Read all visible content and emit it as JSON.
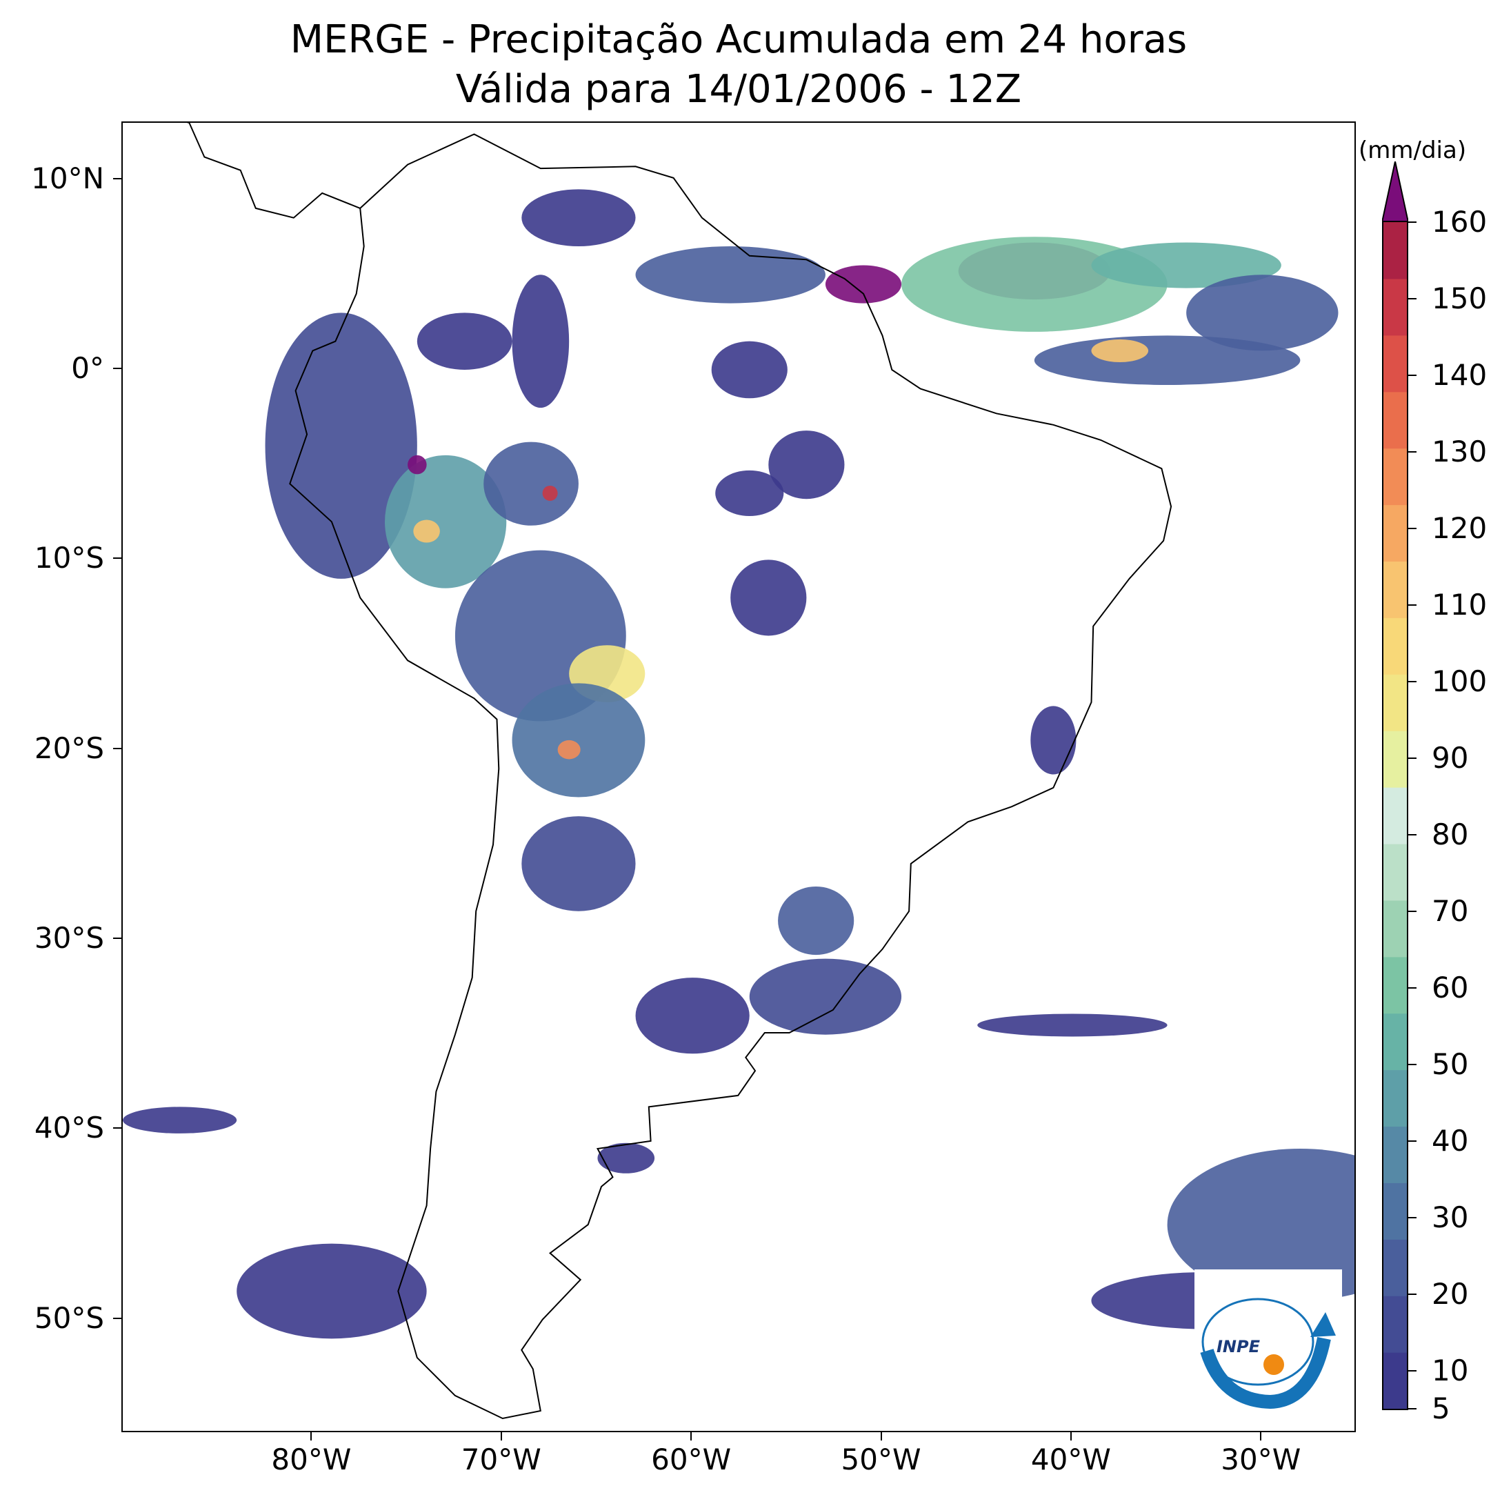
{
  "title": {
    "line1": "MERGE - Precipitação Acumulada em 24 horas",
    "line2": "Válida para 14/01/2006 - 12Z"
  },
  "map": {
    "projection": "PlateCarree",
    "extent_lon": [
      -90,
      -25
    ],
    "extent_lat": [
      -56,
      13
    ],
    "lat_ticks": [
      {
        "value": 10,
        "label": "10°N"
      },
      {
        "value": 0,
        "label": "0°"
      },
      {
        "value": -10,
        "label": "10°S"
      },
      {
        "value": -20,
        "label": "20°S"
      },
      {
        "value": -30,
        "label": "30°S"
      },
      {
        "value": -40,
        "label": "40°S"
      },
      {
        "value": -50,
        "label": "50°S"
      }
    ],
    "lon_ticks": [
      {
        "value": -80,
        "label": "80°W"
      },
      {
        "value": -70,
        "label": "70°W"
      },
      {
        "value": -60,
        "label": "60°W"
      },
      {
        "value": -50,
        "label": "50°W"
      },
      {
        "value": -40,
        "label": "40°W"
      },
      {
        "value": -30,
        "label": "30°W"
      }
    ]
  },
  "colorbar": {
    "unit": "(mm/dia)",
    "min": 5,
    "max": 160,
    "extend": "max",
    "ticks": [
      {
        "value": 5,
        "label": "5"
      },
      {
        "value": 10,
        "label": "10"
      },
      {
        "value": 20,
        "label": "20"
      },
      {
        "value": 30,
        "label": "30"
      },
      {
        "value": 40,
        "label": "40"
      },
      {
        "value": 50,
        "label": "50"
      },
      {
        "value": 60,
        "label": "60"
      },
      {
        "value": 70,
        "label": "70"
      },
      {
        "value": 80,
        "label": "80"
      },
      {
        "value": 90,
        "label": "90"
      },
      {
        "value": 100,
        "label": "100"
      },
      {
        "value": 110,
        "label": "110"
      },
      {
        "value": 120,
        "label": "120"
      },
      {
        "value": 130,
        "label": "130"
      },
      {
        "value": 140,
        "label": "140"
      },
      {
        "value": 150,
        "label": "150"
      },
      {
        "value": 160,
        "label": "160"
      }
    ],
    "colors": [
      "#3c3a8c",
      "#434c94",
      "#4a5f9c",
      "#4f73a2",
      "#5689a6",
      "#5e9fa8",
      "#67b3a6",
      "#7cc4a4",
      "#9dd2b3",
      "#bbe0c8",
      "#d4ebe0",
      "#e6f0a0",
      "#f2e585",
      "#f8d878",
      "#f8c470",
      "#f6a862",
      "#f28c56",
      "#ea6e4c",
      "#dd5148",
      "#c93846",
      "#ab2244"
    ],
    "over_color": "#7a0d7a"
  },
  "logo": {
    "text": "INPE",
    "orbit_color": "#1573b8",
    "dot_color": "#f08a12"
  },
  "precip_regions": [
    {
      "lon": -78.5,
      "lat": -4,
      "rx": 4,
      "ry": 7,
      "level": 15
    },
    {
      "lon": -73,
      "lat": -8,
      "rx": 3.2,
      "ry": 3.5,
      "level": 45
    },
    {
      "lon": -74.5,
      "lat": -5,
      "rx": 0.5,
      "ry": 0.5,
      "level": 160
    },
    {
      "lon": -74,
      "lat": -8.5,
      "rx": 0.7,
      "ry": 0.6,
      "level": 110
    },
    {
      "lon": -68.5,
      "lat": -6,
      "rx": 2.5,
      "ry": 2.2,
      "level": 25
    },
    {
      "lon": -67.5,
      "lat": -6.5,
      "rx": 0.4,
      "ry": 0.4,
      "level": 150
    },
    {
      "lon": -68,
      "lat": -14,
      "rx": 4.5,
      "ry": 4.5,
      "level": 20
    },
    {
      "lon": -64.5,
      "lat": -16,
      "rx": 2,
      "ry": 1.5,
      "level": 100
    },
    {
      "lon": -66,
      "lat": -19.5,
      "rx": 3.5,
      "ry": 3,
      "level": 30
    },
    {
      "lon": -66.5,
      "lat": -20,
      "rx": 0.6,
      "ry": 0.5,
      "level": 130
    },
    {
      "lon": -66,
      "lat": -26,
      "rx": 3,
      "ry": 2.5,
      "level": 15
    },
    {
      "lon": -68,
      "lat": 1.5,
      "rx": 1.5,
      "ry": 3.5,
      "level": 8
    },
    {
      "lon": -72,
      "lat": 1.5,
      "rx": 2.5,
      "ry": 1.5,
      "level": 8
    },
    {
      "lon": -57,
      "lat": 0,
      "rx": 2,
      "ry": 1.5,
      "level": 10
    },
    {
      "lon": -54,
      "lat": -5,
      "rx": 2,
      "ry": 1.8,
      "level": 12
    },
    {
      "lon": -57,
      "lat": -6.5,
      "rx": 1.8,
      "ry": 1.2,
      "level": 8
    },
    {
      "lon": -66,
      "lat": 8,
      "rx": 3,
      "ry": 1.5,
      "level": 10
    },
    {
      "lon": -58,
      "lat": 5,
      "rx": 5,
      "ry": 1.5,
      "level": 20
    },
    {
      "lon": -51,
      "lat": 4.5,
      "rx": 2,
      "ry": 1,
      "level": 160
    },
    {
      "lon": -42,
      "lat": 5.2,
      "rx": 4,
      "ry": 1.5,
      "level": 160
    },
    {
      "lon": -42,
      "lat": 4.5,
      "rx": 7,
      "ry": 2.5,
      "level": 60
    },
    {
      "lon": -34,
      "lat": 5.5,
      "rx": 5,
      "ry": 1.2,
      "level": 50
    },
    {
      "lon": -30,
      "lat": 3,
      "rx": 4,
      "ry": 2,
      "level": 20
    },
    {
      "lon": -35,
      "lat": 0.5,
      "rx": 7,
      "ry": 1.3,
      "level": 20
    },
    {
      "lon": -37.5,
      "lat": 1,
      "rx": 1.5,
      "ry": 0.6,
      "level": 110
    },
    {
      "lon": -56,
      "lat": -12,
      "rx": 2,
      "ry": 2,
      "level": 8
    },
    {
      "lon": -53.5,
      "lat": -29,
      "rx": 2,
      "ry": 1.8,
      "level": 25
    },
    {
      "lon": -53,
      "lat": -33,
      "rx": 4,
      "ry": 2,
      "level": 15
    },
    {
      "lon": -60,
      "lat": -34,
      "rx": 3,
      "ry": 2,
      "level": 10
    },
    {
      "lon": -41,
      "lat": -19.5,
      "rx": 1.2,
      "ry": 1.8,
      "level": 12
    },
    {
      "lon": -40,
      "lat": -34.5,
      "rx": 5,
      "ry": 0.6,
      "level": 12
    },
    {
      "lon": -28,
      "lat": -45,
      "rx": 7,
      "ry": 4,
      "level": 25
    },
    {
      "lon": -33,
      "lat": -49,
      "rx": 6,
      "ry": 1.5,
      "level": 12
    },
    {
      "lon": -79,
      "lat": -48.5,
      "rx": 5,
      "ry": 2.5,
      "level": 12
    },
    {
      "lon": -87,
      "lat": -39.5,
      "rx": 3,
      "ry": 0.7,
      "level": 8
    },
    {
      "lon": -63.5,
      "lat": -41.5,
      "rx": 1.5,
      "ry": 0.8,
      "level": 8
    }
  ]
}
